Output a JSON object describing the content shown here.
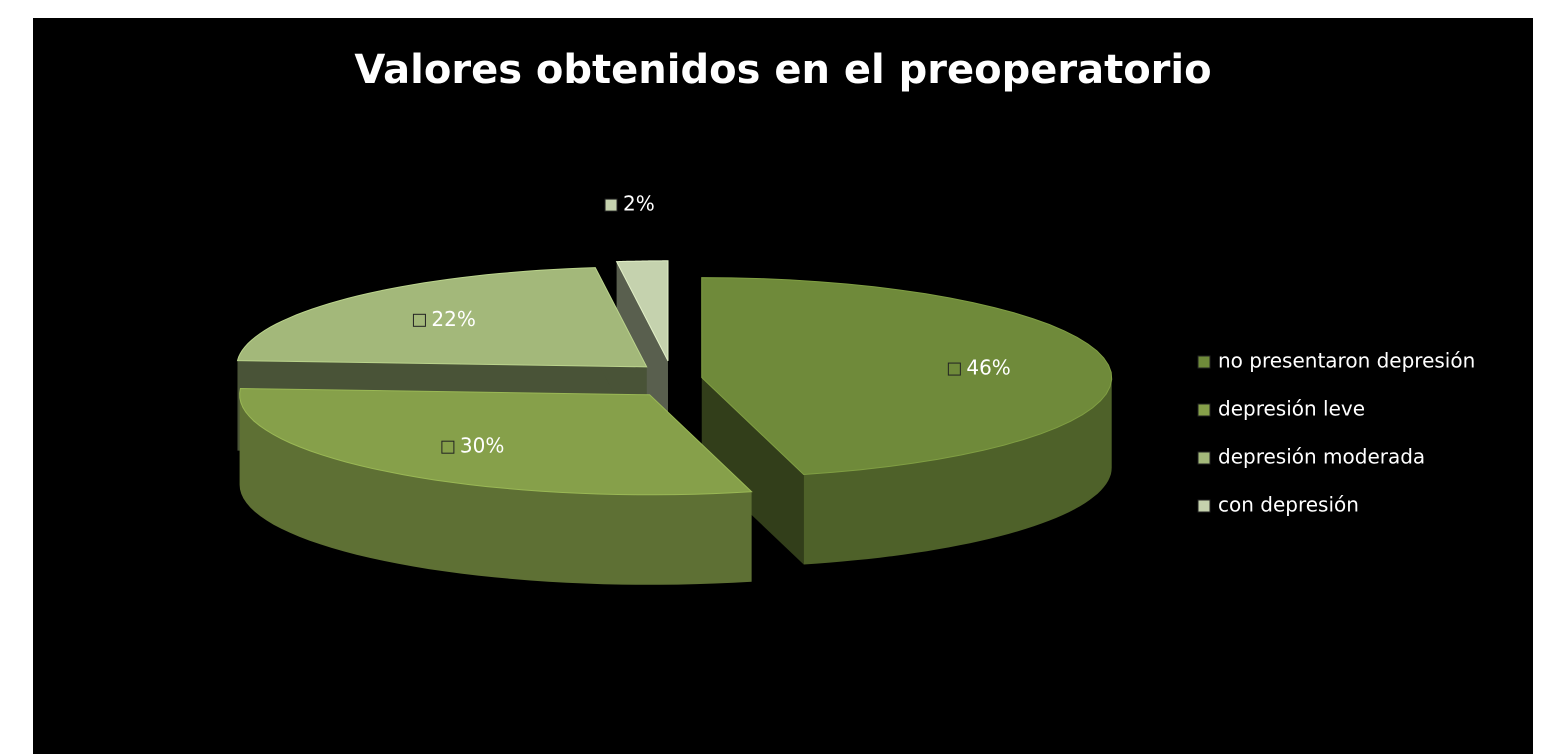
{
  "chart_data": {
    "type": "pie",
    "title": "Valores obtenidos en el preoperatorio",
    "categories": [
      "no presentaron depresión",
      "depresión leve",
      "depresión moderada",
      "con depresión"
    ],
    "values": [
      46,
      30,
      22,
      2
    ],
    "value_labels": [
      "46%",
      "30%",
      "22%",
      "2%"
    ],
    "colors": [
      "#6f8a3a",
      "#86a04a",
      "#a3b87a",
      "#c5d2ae"
    ],
    "legend": "right"
  }
}
